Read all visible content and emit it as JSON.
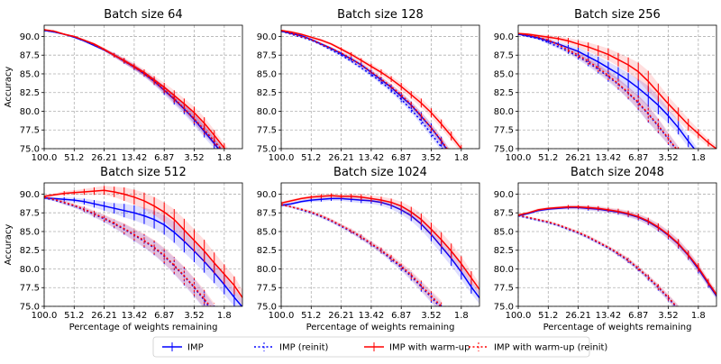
{
  "chart_data": {
    "type": "line",
    "x_tick_labels": [
      "100.0",
      "51.2",
      "26.21",
      "13.42",
      "6.87",
      "3.52",
      "1.8"
    ],
    "x_tick_values": [
      100.0,
      51.2,
      26.21,
      13.42,
      6.87,
      3.52,
      1.8
    ],
    "xlim": [
      100.0,
      1.2
    ],
    "x_scale": "log-reversed",
    "xlabel": "Percentage of weights remaining",
    "ylabel": "Accuracy",
    "ylim": [
      75.0,
      91.5
    ],
    "y_tick_labels": [
      "75.0",
      "77.5",
      "80.0",
      "82.5",
      "85.0",
      "87.5",
      "90.0"
    ],
    "y_tick_values": [
      75.0,
      77.5,
      80.0,
      82.5,
      85.0,
      87.5,
      90.0
    ],
    "grid": true,
    "legend_position": "bottom-center",
    "x": [
      100.0,
      80.0,
      64.0,
      51.2,
      40.96,
      32.77,
      26.21,
      20.97,
      16.78,
      13.42,
      10.74,
      8.59,
      6.87,
      5.5,
      4.4,
      3.52,
      2.81,
      2.25,
      1.8,
      1.44,
      1.15
    ],
    "series_styles": [
      {
        "name": "IMP",
        "color": "#0000ff",
        "dash": "solid"
      },
      {
        "name": "IMP (reinit)",
        "color": "#0000ff",
        "dash": "dotted"
      },
      {
        "name": "IMP with warm-up",
        "color": "#ff0000",
        "dash": "solid"
      },
      {
        "name": "IMP with warm-up (reinit)",
        "color": "#ff0000",
        "dash": "dotted"
      }
    ],
    "panels": [
      {
        "title": "Batch size 64",
        "series": [
          [
            90.8,
            90.6,
            90.3,
            89.9,
            89.4,
            88.8,
            88.2,
            87.5,
            86.7,
            85.9,
            85.0,
            84.0,
            82.8,
            81.6,
            80.3,
            78.9,
            77.3,
            75.7,
            74.0,
            null,
            null
          ],
          [
            90.8,
            90.6,
            90.3,
            89.9,
            89.4,
            88.8,
            88.2,
            87.5,
            86.7,
            85.9,
            85.0,
            84.0,
            82.9,
            81.7,
            80.4,
            79.0,
            77.5,
            76.0,
            74.4,
            null,
            null
          ],
          [
            90.9,
            90.7,
            90.3,
            90.0,
            89.5,
            89.0,
            88.3,
            87.5,
            86.8,
            86.0,
            85.2,
            84.2,
            83.2,
            82.1,
            81.0,
            79.8,
            78.4,
            76.8,
            75.1,
            73.4,
            null
          ],
          [
            90.9,
            90.7,
            90.3,
            90.0,
            89.5,
            88.9,
            88.2,
            87.5,
            86.7,
            85.9,
            85.0,
            84.0,
            82.9,
            81.7,
            80.4,
            79.0,
            77.5,
            76.0,
            74.5,
            null,
            null
          ]
        ],
        "errors": [
          0,
          0,
          0,
          0.1,
          0.1,
          0.15,
          0.2,
          0.3,
          0.35,
          0.4,
          0.4,
          0.5,
          0.6,
          0.7,
          0.7,
          0.8,
          0.8,
          0.7,
          0.6,
          0.5,
          0.4
        ]
      },
      {
        "title": "Batch size 128",
        "series": [
          [
            90.7,
            90.4,
            90.1,
            89.6,
            89.0,
            88.4,
            87.7,
            87.0,
            86.2,
            85.2,
            84.2,
            83.2,
            82.0,
            80.8,
            79.3,
            77.8,
            76.0,
            74.0,
            null,
            null,
            null
          ],
          [
            90.7,
            90.3,
            89.9,
            89.5,
            88.9,
            88.2,
            87.5,
            86.7,
            85.8,
            84.9,
            83.9,
            82.8,
            81.6,
            80.2,
            78.7,
            77.0,
            75.2,
            73.5,
            null,
            null,
            null
          ],
          [
            90.8,
            90.6,
            90.3,
            89.9,
            89.5,
            89.0,
            88.3,
            87.6,
            86.8,
            86.0,
            85.2,
            84.3,
            83.3,
            82.2,
            81.1,
            79.8,
            78.3,
            76.7,
            75.0,
            null,
            null
          ],
          [
            90.8,
            90.4,
            90.0,
            89.6,
            89.0,
            88.4,
            87.8,
            87.0,
            86.2,
            85.3,
            84.3,
            83.3,
            82.2,
            80.9,
            79.4,
            77.8,
            76.1,
            74.2,
            null,
            null,
            null
          ]
        ],
        "errors": [
          0,
          0.1,
          0.1,
          0.15,
          0.2,
          0.2,
          0.25,
          0.3,
          0.3,
          0.35,
          0.4,
          0.4,
          0.5,
          0.5,
          0.6,
          0.6,
          0.6,
          0.6,
          0.5,
          0.4,
          0.4
        ]
      },
      {
        "title": "Batch size 256",
        "series": [
          [
            90.3,
            90.1,
            89.8,
            89.4,
            89.0,
            88.5,
            88.0,
            87.3,
            86.6,
            85.8,
            85.0,
            84.1,
            83.1,
            82.0,
            80.8,
            79.4,
            77.8,
            76.0,
            74.3,
            null,
            null
          ],
          [
            90.3,
            90.0,
            89.7,
            89.2,
            88.6,
            88.0,
            87.3,
            86.5,
            85.6,
            84.6,
            83.6,
            82.4,
            81.1,
            79.6,
            78.0,
            76.3,
            74.5,
            null,
            null,
            null,
            null
          ],
          [
            90.4,
            90.3,
            90.1,
            89.9,
            89.7,
            89.4,
            89.0,
            88.6,
            88.1,
            87.6,
            86.9,
            86.2,
            85.3,
            84.0,
            82.5,
            81.0,
            79.6,
            78.2,
            77.0,
            75.8,
            74.8
          ],
          [
            90.4,
            90.2,
            89.9,
            89.5,
            88.9,
            88.2,
            87.5,
            86.7,
            85.8,
            84.8,
            83.7,
            82.5,
            81.2,
            79.7,
            78.1,
            76.4,
            74.6,
            null,
            null,
            null,
            null
          ]
        ],
        "errors": [
          0.1,
          0.2,
          0.2,
          0.3,
          0.3,
          0.4,
          0.5,
          0.6,
          0.7,
          0.8,
          0.9,
          1.0,
          1.2,
          1.4,
          1.2,
          1.0,
          0.9,
          0.8,
          0.6,
          0.5,
          0.4
        ]
      },
      {
        "title": "Batch size 512",
        "series": [
          [
            89.5,
            89.4,
            89.3,
            89.2,
            89.0,
            88.7,
            88.4,
            88.1,
            87.8,
            87.5,
            87.1,
            86.6,
            85.9,
            84.9,
            83.7,
            82.4,
            81.0,
            79.5,
            77.9,
            76.2,
            74.6
          ],
          [
            89.5,
            89.2,
            88.8,
            88.4,
            87.9,
            87.3,
            86.7,
            86.0,
            85.3,
            84.5,
            83.7,
            82.8,
            81.7,
            80.4,
            79.0,
            77.5,
            75.8,
            74.0,
            null,
            null,
            null
          ],
          [
            89.7,
            89.9,
            90.1,
            90.2,
            90.3,
            90.4,
            90.5,
            90.3,
            90.0,
            89.6,
            89.1,
            88.4,
            87.6,
            86.6,
            85.2,
            83.8,
            82.4,
            80.8,
            79.3,
            77.8,
            75.8
          ],
          [
            89.6,
            89.3,
            88.9,
            88.5,
            88.0,
            87.4,
            86.8,
            86.1,
            85.4,
            84.6,
            83.8,
            82.9,
            81.8,
            80.5,
            79.1,
            77.6,
            76.0,
            74.3,
            null,
            null,
            null
          ]
        ],
        "errors": [
          0.2,
          0.2,
          0.3,
          0.3,
          0.4,
          0.5,
          0.6,
          0.7,
          0.9,
          1.0,
          1.1,
          1.2,
          1.3,
          1.4,
          1.5,
          1.5,
          1.5,
          1.4,
          1.3,
          1.2,
          1.0
        ]
      },
      {
        "title": "Batch size 1024",
        "series": [
          [
            88.5,
            88.7,
            89.0,
            89.2,
            89.3,
            89.4,
            89.4,
            89.3,
            89.2,
            89.1,
            88.9,
            88.5,
            87.9,
            87.1,
            86.0,
            84.6,
            83.0,
            81.4,
            79.6,
            77.6,
            75.8
          ],
          [
            88.6,
            88.3,
            87.9,
            87.5,
            87.0,
            86.4,
            85.7,
            85.0,
            84.2,
            83.3,
            82.4,
            81.3,
            80.2,
            79.0,
            77.6,
            76.2,
            74.7,
            null,
            null,
            null,
            null
          ],
          [
            88.8,
            89.1,
            89.4,
            89.6,
            89.7,
            89.8,
            89.7,
            89.7,
            89.6,
            89.4,
            89.2,
            88.9,
            88.4,
            87.6,
            86.6,
            85.3,
            83.9,
            82.4,
            80.7,
            78.8,
            76.9
          ],
          [
            88.6,
            88.3,
            88.0,
            87.6,
            87.1,
            86.5,
            85.8,
            85.1,
            84.3,
            83.4,
            82.5,
            81.5,
            80.4,
            79.2,
            77.8,
            76.4,
            75.0,
            null,
            null,
            null,
            null
          ]
        ],
        "errors": [
          0.2,
          0.2,
          0.2,
          0.25,
          0.3,
          0.3,
          0.3,
          0.35,
          0.4,
          0.4,
          0.45,
          0.5,
          0.6,
          0.7,
          0.8,
          0.9,
          1.0,
          1.0,
          1.0,
          0.9,
          0.8
        ]
      },
      {
        "title": "Batch size 2048",
        "series": [
          [
            87.1,
            87.4,
            87.8,
            88.0,
            88.1,
            88.2,
            88.2,
            88.1,
            88.0,
            87.8,
            87.6,
            87.3,
            86.9,
            86.3,
            85.5,
            84.5,
            83.3,
            81.8,
            80.0,
            78.0,
            76.0
          ],
          [
            87.1,
            86.8,
            86.5,
            86.2,
            85.8,
            85.3,
            84.8,
            84.2,
            83.5,
            82.8,
            82.0,
            81.1,
            80.0,
            78.8,
            77.5,
            76.1,
            74.6,
            null,
            null,
            null,
            null
          ],
          [
            87.2,
            87.5,
            87.9,
            88.1,
            88.2,
            88.3,
            88.3,
            88.2,
            88.1,
            87.9,
            87.7,
            87.4,
            87.0,
            86.4,
            85.6,
            84.6,
            83.4,
            81.9,
            80.2,
            78.2,
            76.2
          ],
          [
            87.2,
            86.9,
            86.6,
            86.3,
            85.9,
            85.4,
            84.9,
            84.3,
            83.6,
            82.9,
            82.1,
            81.2,
            80.1,
            78.9,
            77.6,
            76.2,
            74.7,
            null,
            null,
            null,
            null
          ]
        ],
        "errors": [
          0.15,
          0.15,
          0.2,
          0.2,
          0.2,
          0.25,
          0.25,
          0.3,
          0.3,
          0.3,
          0.35,
          0.4,
          0.4,
          0.45,
          0.5,
          0.55,
          0.6,
          0.6,
          0.6,
          0.5,
          0.5
        ]
      }
    ]
  }
}
